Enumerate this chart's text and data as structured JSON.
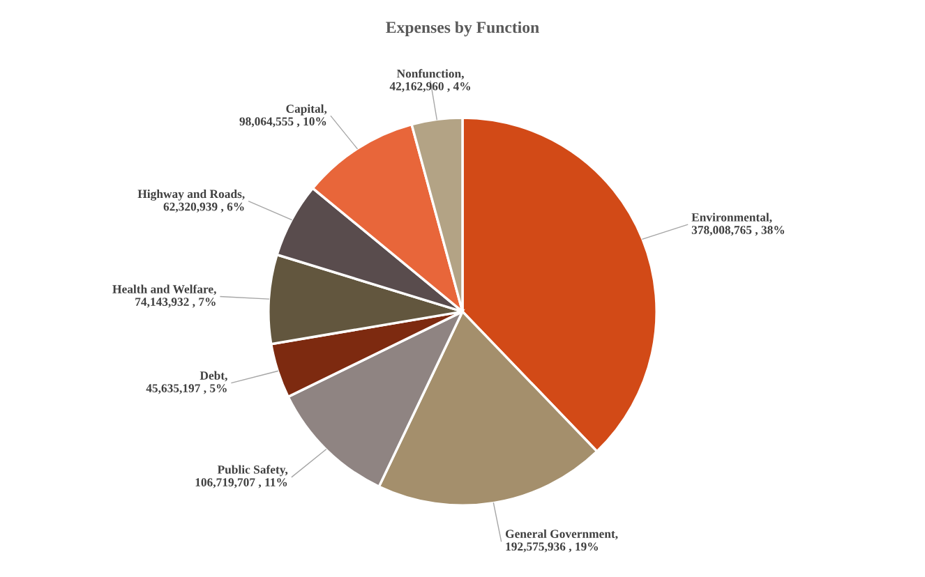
{
  "chart_data": {
    "type": "pie",
    "title": "Expenses by Function",
    "categories": [
      "Environmental",
      "General Government",
      "Public Safety",
      "Debt",
      "Health and Welfare",
      "Highway and Roads",
      "Capital",
      "Nonfunction"
    ],
    "values": [
      378008765,
      192575936,
      106719707,
      45635197,
      74143932,
      62320939,
      98064555,
      42162960
    ],
    "colors": [
      "#d24a17",
      "#a48f6c",
      "#8f8482",
      "#7d2a10",
      "#62563e",
      "#594c4d",
      "#e8663a",
      "#b3a385"
    ],
    "value_labels": [
      ", 378,008,765 , 38%",
      ", 192,575,936 , 19%",
      ", 106,719,707 , 11%",
      ", 45,635,197 , 5%",
      ", 74,143,932 , 7%",
      ", 62,320,939 , 6%",
      ", 98,064,555 , 10%",
      ", 42,162,960 , 4%"
    ]
  }
}
